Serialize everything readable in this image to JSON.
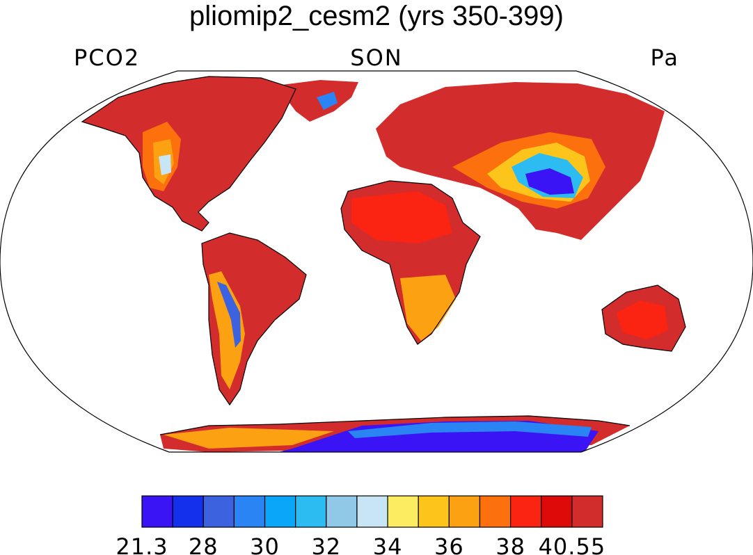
{
  "title": "pliomip2_cesm2 (yrs 350-399)",
  "left_string": "PCO2",
  "center_string": "SON",
  "right_string": "Pa",
  "colorbar": {
    "colors": [
      "#3a14f5",
      "#1530ec",
      "#3c62e0",
      "#2a84f4",
      "#0aa6f7",
      "#2dbcf2",
      "#90c9e8",
      "#c7e5f5",
      "#fbec62",
      "#fdc51c",
      "#fca111",
      "#fc700d",
      "#fb2413",
      "#de0a0a",
      "#d22c2c"
    ],
    "labels": [
      {
        "text": "21.3",
        "edge": 0
      },
      {
        "text": "28",
        "edge": 2
      },
      {
        "text": "30",
        "edge": 4
      },
      {
        "text": "32",
        "edge": 6
      },
      {
        "text": "34",
        "edge": 8
      },
      {
        "text": "36",
        "edge": 10
      },
      {
        "text": "38",
        "edge": 12
      },
      {
        "text": "40.55",
        "edge": 14
      }
    ]
  },
  "map_colors": {
    "dominant": "#d22c2c",
    "hot": "#fb2413",
    "warm": "#fc700d",
    "orange": "#fca111",
    "yellow": "#fdc51c",
    "pale": "#c7e5f5",
    "blue": "#2a84f4",
    "deep_blue": "#3a14f5"
  }
}
